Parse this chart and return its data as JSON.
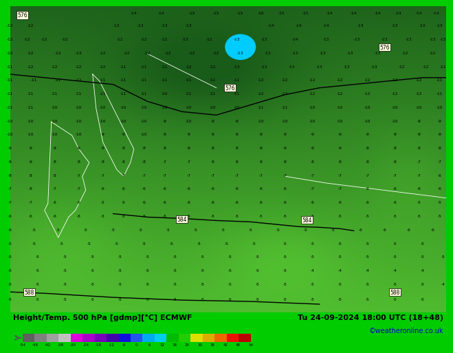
{
  "title_left": "Height/Temp. 500 hPa [gdmp][°C] ECMWF",
  "title_right": "Tu 24-09-2024 18:00 UTC (18+48)",
  "credit": "©weatheronline.co.uk",
  "bg_color": "#00cc00",
  "colorbar_colors": [
    "#606060",
    "#808080",
    "#a0a0a0",
    "#c0c0c0",
    "#dd00dd",
    "#aa00cc",
    "#7700bb",
    "#4400aa",
    "#1111dd",
    "#2255ee",
    "#00aaee",
    "#00ccee",
    "#00bb00",
    "#22cc00",
    "#dddd00",
    "#ddaa00",
    "#ee6600",
    "#ee1100",
    "#bb0000"
  ],
  "colorbar_tick_labels": [
    "-54",
    "-48",
    "-42",
    "-38",
    "-30",
    "-24",
    "-18",
    "-12",
    "-6",
    "0",
    "6",
    "12",
    "18",
    "24",
    "30",
    "36",
    "42",
    "48",
    "54"
  ],
  "map_colors": {
    "c_minus15": "#1a5c1a",
    "c_minus12": "#1e6b1e",
    "c_minus10": "#237823",
    "c_minus8": "#2d8f2d",
    "c_minus6": "#38a838",
    "c_minus5": "#44bb44",
    "c_minus4": "#55cc55",
    "c_minus3": "#66dd66",
    "cyan_cold": "#00ccff"
  },
  "text_color": "#000000",
  "title_color": "#000000",
  "credit_color": "#0000cc"
}
